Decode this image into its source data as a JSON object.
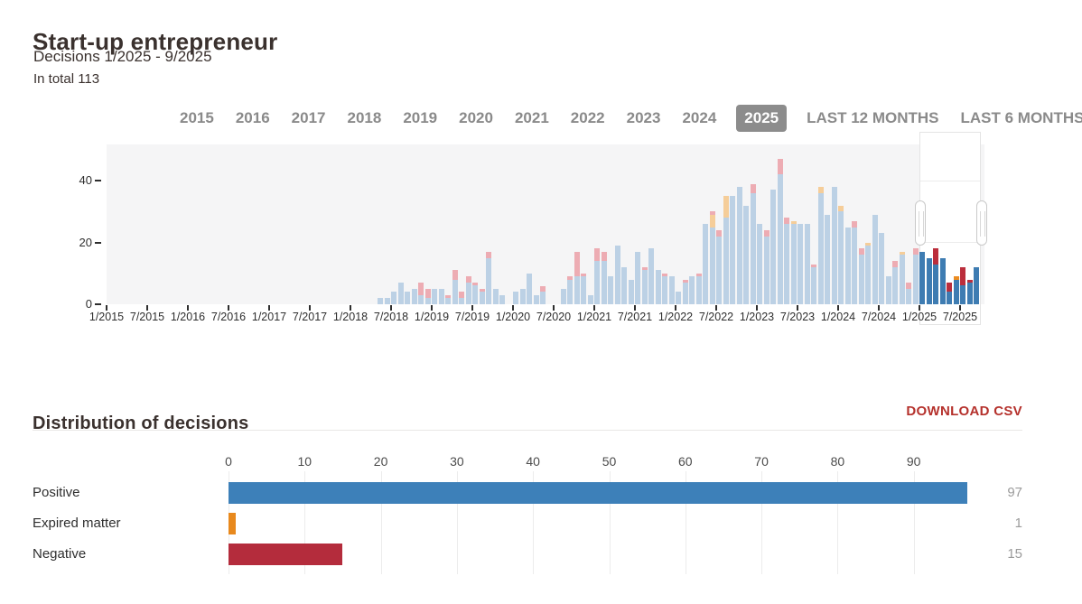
{
  "header": {
    "title": "Start-up entrepreneur",
    "subtitle": "Decisions 1/2025 - 9/2025",
    "total": "In total 113"
  },
  "tabs": {
    "items": [
      {
        "label": "2015",
        "selected": false
      },
      {
        "label": "2016",
        "selected": false
      },
      {
        "label": "2017",
        "selected": false
      },
      {
        "label": "2018",
        "selected": false
      },
      {
        "label": "2019",
        "selected": false
      },
      {
        "label": "2020",
        "selected": false
      },
      {
        "label": "2021",
        "selected": false
      },
      {
        "label": "2022",
        "selected": false
      },
      {
        "label": "2023",
        "selected": false
      },
      {
        "label": "2024",
        "selected": false
      },
      {
        "label": "2025",
        "selected": true
      },
      {
        "label": "LAST 12 MONTHS",
        "selected": false
      },
      {
        "label": "LAST 6 MONTHS",
        "selected": false
      }
    ]
  },
  "chart_data": [
    {
      "name": "decisions-timeline",
      "type": "bar",
      "stacked": true,
      "x_start": "1/2015",
      "x_end": "9/2025",
      "months_per_tick": 6,
      "xticks": [
        "1/2015",
        "7/2015",
        "1/2016",
        "7/2016",
        "1/2017",
        "7/2017",
        "1/2018",
        "7/2018",
        "1/2019",
        "7/2019",
        "1/2020",
        "7/2020",
        "1/2021",
        "7/2021",
        "1/2022",
        "7/2022",
        "1/2023",
        "7/2023",
        "1/2024",
        "7/2024",
        "1/2025",
        "7/2025"
      ],
      "yticks": [
        0,
        20,
        40
      ],
      "ylim": [
        0,
        52
      ],
      "selection": {
        "from": "1/2025",
        "to": "9/2025",
        "start_index": 120
      },
      "series": [
        {
          "name": "Positive",
          "color": "#3e7cb2",
          "faded_color": "#bcd1e5",
          "values": [
            0,
            0,
            0,
            0,
            0,
            0,
            0,
            0,
            0,
            0,
            0,
            0,
            0,
            0,
            0,
            0,
            0,
            0,
            0,
            0,
            0,
            0,
            0,
            0,
            0,
            0,
            0,
            0,
            0,
            0,
            0,
            0,
            0,
            0,
            0,
            0,
            0,
            0,
            0,
            0,
            2,
            2,
            4,
            7,
            4,
            5,
            3,
            2,
            5,
            5,
            2,
            8,
            2,
            7,
            6,
            4,
            15,
            5,
            3,
            0,
            4,
            5,
            10,
            3,
            4,
            0,
            0,
            5,
            8,
            9,
            9,
            3,
            14,
            14,
            9,
            19,
            12,
            8,
            17,
            11,
            18,
            11,
            9,
            9,
            4,
            7,
            9,
            9,
            26,
            25,
            22,
            28,
            35,
            38,
            32,
            36,
            26,
            22,
            37,
            42,
            26,
            26,
            26,
            26,
            12,
            36,
            29,
            38,
            30,
            25,
            25,
            16,
            19,
            29,
            23,
            9,
            12,
            16,
            5,
            16,
            17,
            15,
            13,
            15,
            4,
            8,
            6,
            7,
            12
          ]
        },
        {
          "name": "Expired matter",
          "color": "#ec8c21",
          "faded_color": "#f5cd99",
          "values": [
            0,
            0,
            0,
            0,
            0,
            0,
            0,
            0,
            0,
            0,
            0,
            0,
            0,
            0,
            0,
            0,
            0,
            0,
            0,
            0,
            0,
            0,
            0,
            0,
            0,
            0,
            0,
            0,
            0,
            0,
            0,
            0,
            0,
            0,
            0,
            0,
            0,
            0,
            0,
            0,
            0,
            0,
            0,
            0,
            0,
            0,
            0,
            0,
            0,
            0,
            0,
            0,
            0,
            0,
            0,
            0,
            0,
            0,
            0,
            0,
            0,
            0,
            0,
            0,
            0,
            0,
            0,
            0,
            0,
            0,
            0,
            0,
            0,
            0,
            0,
            0,
            0,
            0,
            0,
            0,
            0,
            0,
            0,
            0,
            0,
            0,
            0,
            0,
            0,
            4,
            0,
            7,
            0,
            0,
            0,
            0,
            0,
            0,
            0,
            0,
            0,
            1,
            0,
            0,
            0,
            2,
            0,
            0,
            2,
            0,
            0,
            0,
            1,
            0,
            0,
            0,
            0,
            1,
            0,
            0,
            0,
            0,
            0,
            0,
            0,
            1,
            0,
            0,
            0
          ]
        },
        {
          "name": "Negative",
          "color": "#bb2e3c",
          "faded_color": "#edacb3",
          "values": [
            0,
            0,
            0,
            0,
            0,
            0,
            0,
            0,
            0,
            0,
            0,
            0,
            0,
            0,
            0,
            0,
            0,
            0,
            0,
            0,
            0,
            0,
            0,
            0,
            0,
            0,
            0,
            0,
            0,
            0,
            0,
            0,
            0,
            0,
            0,
            0,
            0,
            0,
            0,
            0,
            0,
            0,
            0,
            0,
            0,
            0,
            4,
            3,
            0,
            0,
            1,
            3,
            2,
            2,
            1,
            1,
            2,
            0,
            0,
            0,
            0,
            0,
            0,
            0,
            2,
            0,
            0,
            0,
            1,
            8,
            1,
            0,
            4,
            3,
            0,
            0,
            0,
            0,
            0,
            1,
            0,
            0,
            1,
            0,
            0,
            1,
            0,
            1,
            0,
            1,
            2,
            0,
            0,
            0,
            0,
            3,
            0,
            2,
            0,
            5,
            2,
            0,
            0,
            0,
            1,
            0,
            0,
            0,
            0,
            0,
            2,
            2,
            0,
            0,
            0,
            0,
            2,
            0,
            2,
            2,
            0,
            0,
            5,
            0,
            3,
            0,
            6,
            1,
            0
          ]
        }
      ]
    },
    {
      "name": "distribution-of-decisions",
      "type": "bar",
      "orientation": "horizontal",
      "title": "Distribution of decisions",
      "categories": [
        "Positive",
        "Expired matter",
        "Negative"
      ],
      "values": [
        97,
        1,
        15
      ],
      "colors": [
        "#3d80b9",
        "#e8891d",
        "#b42c3c"
      ],
      "xticks": [
        0,
        10,
        20,
        30,
        40,
        50,
        60,
        70,
        80,
        90
      ],
      "xlim": [
        0,
        104
      ],
      "grid": true,
      "legend": false
    }
  ],
  "distribution": {
    "download_label": "DOWNLOAD CSV"
  }
}
